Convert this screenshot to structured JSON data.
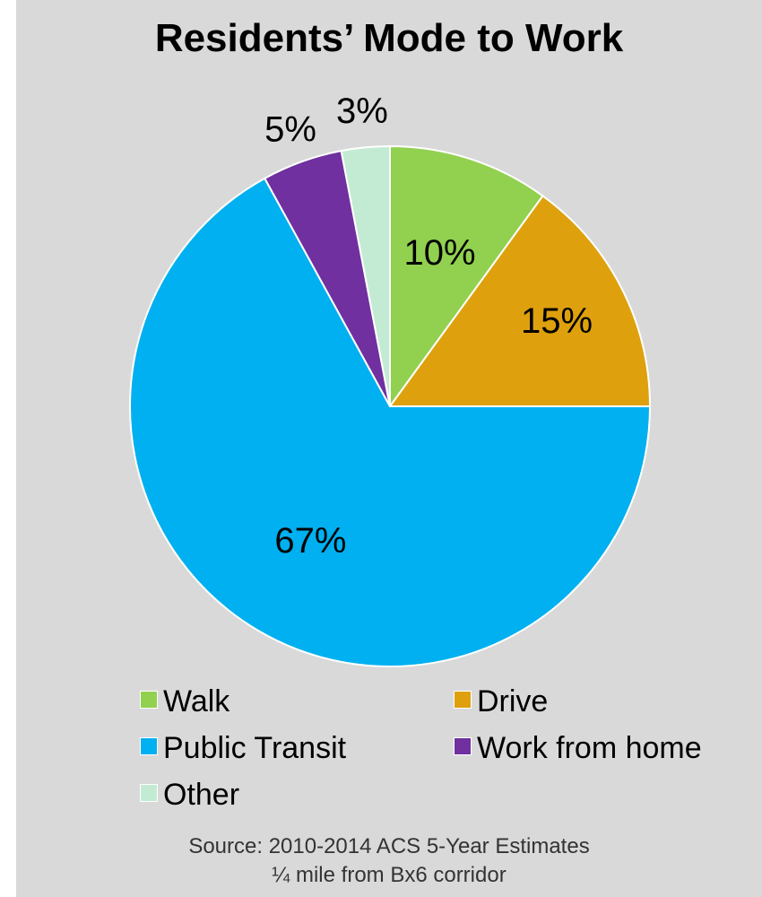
{
  "chart_data": {
    "type": "pie",
    "title": "Residents’ Mode to Work",
    "categories": [
      "Walk",
      "Drive",
      "Public Transit",
      "Work from home",
      "Other"
    ],
    "values": [
      10,
      15,
      67,
      5,
      3
    ],
    "data_labels": [
      "10%",
      "15%",
      "67%",
      "5%",
      "3%"
    ],
    "colors": [
      "#92d050",
      "#dea10d",
      "#00b0f0",
      "#7030a0",
      "#c3ebd3"
    ],
    "start_angle_deg": 0,
    "direction": "clockwise",
    "legend_position": "bottom"
  },
  "legend": [
    {
      "label": "Walk",
      "color": "#92d050"
    },
    {
      "label": "Drive",
      "color": "#dea10d"
    },
    {
      "label": "Public Transit",
      "color": "#00b0f0"
    },
    {
      "label": "Work from home",
      "color": "#7030a0"
    },
    {
      "label": "Other",
      "color": "#c3ebd3"
    }
  ],
  "source": {
    "line1": "Source: 2010-2014 ACS 5-Year Estimates",
    "line2": "¼ mile from Bx6 corridor"
  },
  "colors": {
    "background": "#d9d9d9",
    "slice_border": "#ffffff"
  }
}
